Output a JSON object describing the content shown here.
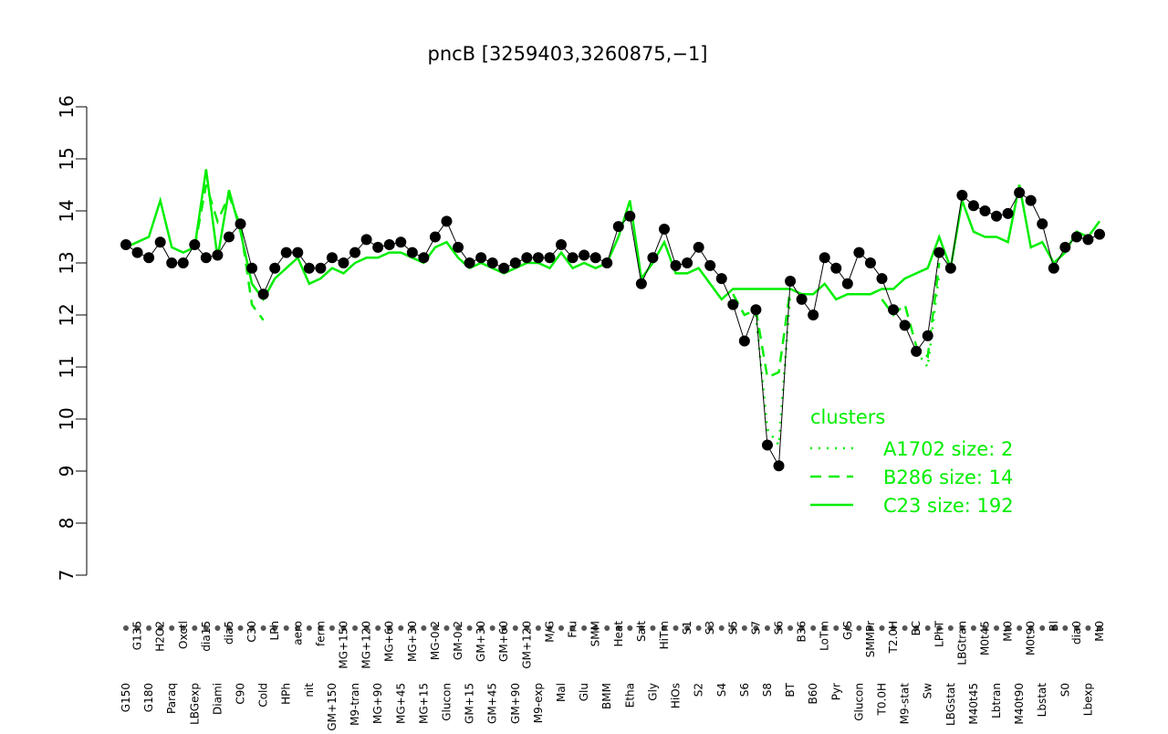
{
  "chart_data": {
    "type": "line",
    "title": "pncB [3259403,3260875,−1]",
    "categories": [
      "G150",
      "G135",
      "G180",
      "H2O2",
      "Paraq",
      "Oxctl",
      "LBGexp",
      "dia15",
      "Diami",
      "dia5",
      "C90",
      "C30",
      "Cold",
      "LPh",
      "HPh",
      "aero",
      "nit",
      "ferm",
      "GM+150",
      "MG+150",
      "M9-tran",
      "MG+120",
      "MG+90",
      "MG+60",
      "MG+45",
      "MG+30",
      "MG+15",
      "MG-0.2",
      "Glucon",
      "GM-0.2",
      "GM+15",
      "GM+30",
      "GM+45",
      "GM+60",
      "GM+90",
      "GM+120",
      "M9-exp",
      "M/G",
      "Mal",
      "Fru",
      "Glu",
      "SMM",
      "BMM",
      "Heat",
      "Etha",
      "Salt",
      "Gly",
      "HiTm",
      "HiOs",
      "S1",
      "S2",
      "S3",
      "S4",
      "S5",
      "S6",
      "S7",
      "S8",
      "S6",
      "BT",
      "B36",
      "B60",
      "LoTm",
      "Pyr",
      "G/S",
      "Glucon",
      "SMMPr",
      "T0.0H",
      "T2.0H",
      "M9-stat",
      "BC",
      "Sw",
      "LPhT",
      "LBGstat",
      "LBGtran",
      "M40t45",
      "M0t45",
      "Lbtran",
      "Mt0",
      "M40t90",
      "M0t90",
      "Lbstat",
      "Bl",
      "S0",
      "dia0",
      "Lbexp",
      "Mt0"
    ],
    "values": [
      13.35,
      13.2,
      13.1,
      13.4,
      13.0,
      13.0,
      13.35,
      13.1,
      13.15,
      13.5,
      13.75,
      12.9,
      12.4,
      12.9,
      13.2,
      13.2,
      12.9,
      12.9,
      13.1,
      13.0,
      13.2,
      13.45,
      13.3,
      13.35,
      13.4,
      13.2,
      13.1,
      13.5,
      13.8,
      13.3,
      13.0,
      13.1,
      13.0,
      12.9,
      13.0,
      13.1,
      13.1,
      13.1,
      13.35,
      13.1,
      13.15,
      13.1,
      13.0,
      13.7,
      13.9,
      12.6,
      13.1,
      13.65,
      12.95,
      13.0,
      13.3,
      12.95,
      12.7,
      12.2,
      11.5,
      12.1,
      9.5,
      9.1,
      12.65,
      12.3,
      12.0,
      13.1,
      12.9,
      12.6,
      13.2,
      13.0,
      12.7,
      12.1,
      11.8,
      11.3,
      11.6,
      13.2,
      12.9,
      14.3,
      14.1,
      14.0,
      13.9,
      13.95,
      14.35,
      14.2,
      13.75,
      12.9,
      13.3,
      13.5,
      13.45,
      13.55
    ],
    "color": "#000000",
    "legend_title": "clusters",
    "series": [
      {
        "name": "A1702 size: 2",
        "color": "#00ee00",
        "style": "dotted",
        "values": [
          null,
          null,
          null,
          null,
          null,
          null,
          null,
          null,
          null,
          null,
          null,
          null,
          null,
          null,
          null,
          null,
          null,
          null,
          null,
          null,
          null,
          null,
          null,
          null,
          null,
          null,
          null,
          null,
          null,
          null,
          null,
          null,
          null,
          null,
          null,
          null,
          null,
          null,
          null,
          null,
          null,
          null,
          null,
          null,
          null,
          null,
          null,
          null,
          null,
          null,
          null,
          null,
          null,
          null,
          null,
          12.0,
          9.8,
          9.5,
          12.4,
          null,
          null,
          null,
          null,
          null,
          null,
          null,
          null,
          null,
          null,
          11.3,
          11.0,
          12.8,
          null,
          null,
          null,
          null,
          null,
          null,
          null,
          null,
          null,
          null,
          null,
          null,
          null,
          null
        ]
      },
      {
        "name": "B286 size: 14",
        "color": "#00ee00",
        "style": "dashed",
        "values": [
          null,
          null,
          null,
          null,
          null,
          null,
          13.3,
          14.5,
          13.8,
          14.3,
          13.7,
          12.2,
          11.9,
          null,
          null,
          null,
          null,
          null,
          null,
          null,
          null,
          null,
          null,
          null,
          null,
          null,
          null,
          null,
          null,
          null,
          null,
          null,
          null,
          null,
          null,
          null,
          null,
          null,
          null,
          null,
          null,
          null,
          null,
          null,
          null,
          null,
          null,
          null,
          null,
          null,
          null,
          null,
          null,
          12.4,
          12.0,
          12.1,
          10.8,
          10.9,
          12.5,
          null,
          null,
          null,
          null,
          null,
          null,
          null,
          12.3,
          12.0,
          12.2,
          11.4,
          11.2,
          13.0,
          null,
          null,
          null,
          null,
          null,
          null,
          null,
          null,
          null,
          null,
          null,
          null,
          null,
          null
        ]
      },
      {
        "name": "C23 size: 192",
        "color": "#00ee00",
        "style": "solid",
        "values": [
          13.3,
          13.4,
          13.5,
          14.2,
          13.3,
          13.2,
          13.3,
          14.8,
          13.1,
          14.4,
          13.6,
          12.6,
          12.3,
          12.7,
          12.9,
          13.1,
          12.6,
          12.7,
          12.9,
          12.8,
          13.0,
          13.1,
          13.1,
          13.2,
          13.2,
          13.1,
          13.0,
          13.3,
          13.4,
          13.1,
          12.9,
          13.0,
          12.9,
          12.8,
          12.9,
          13.0,
          13.0,
          12.9,
          13.2,
          12.9,
          13.0,
          12.9,
          13.0,
          13.5,
          14.2,
          12.7,
          13.0,
          13.4,
          12.8,
          12.8,
          12.9,
          12.6,
          12.3,
          12.5,
          12.5,
          12.5,
          12.5,
          12.5,
          12.5,
          12.4,
          12.4,
          12.6,
          12.3,
          12.4,
          12.4,
          12.4,
          12.5,
          12.5,
          12.7,
          12.8,
          12.9,
          13.5,
          12.9,
          14.2,
          13.6,
          13.5,
          13.5,
          13.4,
          14.5,
          13.3,
          13.4,
          13.0,
          13.2,
          13.6,
          13.5,
          13.8
        ]
      }
    ],
    "ylim": [
      7,
      16
    ],
    "yticks": [
      7,
      8,
      9,
      10,
      11,
      12,
      13,
      14,
      15,
      16
    ]
  }
}
